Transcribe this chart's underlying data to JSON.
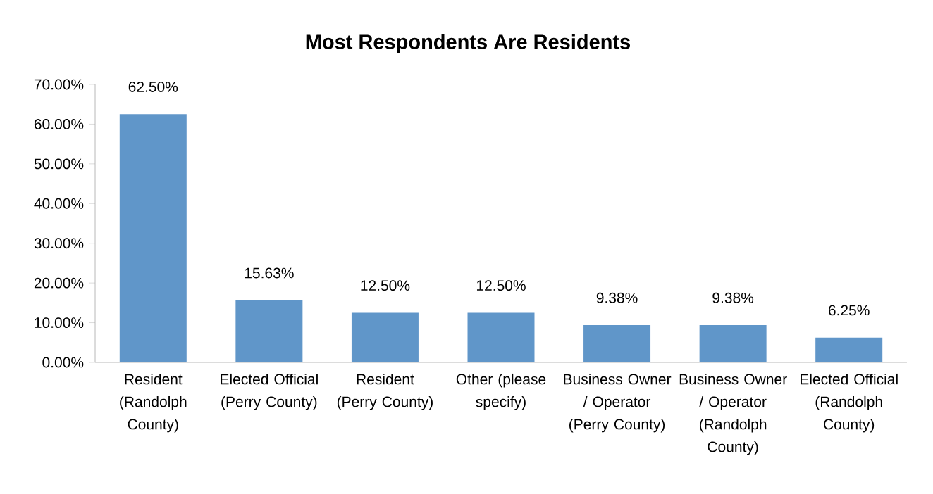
{
  "chart_data": {
    "type": "bar",
    "title": "Most Respondents Are Residents",
    "categories": [
      "Resident (Randolph County)",
      "Elected Official (Perry County)",
      "Resident (Perry County)",
      "Other (please specify)",
      "Business Owner / Operator (Perry County)",
      "Business Owner / Operator (Randolph County)",
      "Elected Official (Randolph County)"
    ],
    "values": [
      62.5,
      15.63,
      12.5,
      12.5,
      9.38,
      9.38,
      6.25
    ],
    "value_labels": [
      "62.50%",
      "15.63%",
      "12.50%",
      "12.50%",
      "9.38%",
      "9.38%",
      "6.25%"
    ],
    "color": "#6096c9",
    "ylim": [
      0,
      70
    ],
    "yticks": [
      {
        "value": 0,
        "label": "0.00%"
      },
      {
        "value": 10,
        "label": "10.00%"
      },
      {
        "value": 20,
        "label": "20.00%"
      },
      {
        "value": 30,
        "label": "30.00%"
      },
      {
        "value": 40,
        "label": "40.00%"
      },
      {
        "value": 50,
        "label": "50.00%"
      },
      {
        "value": 60,
        "label": "60.00%"
      },
      {
        "value": 70,
        "label": "70.00%"
      }
    ],
    "grid": false
  }
}
